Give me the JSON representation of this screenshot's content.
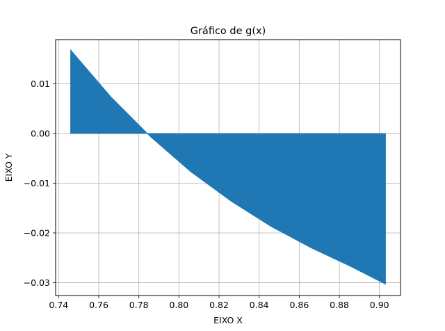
{
  "chart_data": {
    "type": "area",
    "title": "Gráfico de g(x)",
    "xlabel": "EIXO X",
    "ylabel": "EIXO Y",
    "xlim": [
      0.7385,
      0.9105
    ],
    "ylim": [
      -0.0326,
      0.0189
    ],
    "grid": true,
    "fill_color": "#1f77b4",
    "x_ticks": [
      0.74,
      0.76,
      0.78,
      0.8,
      0.82,
      0.84,
      0.86,
      0.88,
      0.9
    ],
    "x_tick_labels": [
      "0.74",
      "0.76",
      "0.78",
      "0.80",
      "0.82",
      "0.84",
      "0.86",
      "0.88",
      "0.90"
    ],
    "y_ticks": [
      0.01,
      0.0,
      -0.01,
      -0.02,
      -0.03
    ],
    "y_tick_labels": [
      "0.01",
      "0.00",
      "−0.01",
      "−0.02",
      "−0.03"
    ],
    "series": [
      {
        "x": [
          0.746,
          0.766,
          0.786,
          0.806,
          0.826,
          0.846,
          0.866,
          0.886,
          0.903
        ],
        "y": [
          0.0168,
          0.0074,
          -0.0007,
          -0.0077,
          -0.0136,
          -0.0187,
          -0.023,
          -0.0268,
          -0.0303
        ]
      }
    ]
  }
}
